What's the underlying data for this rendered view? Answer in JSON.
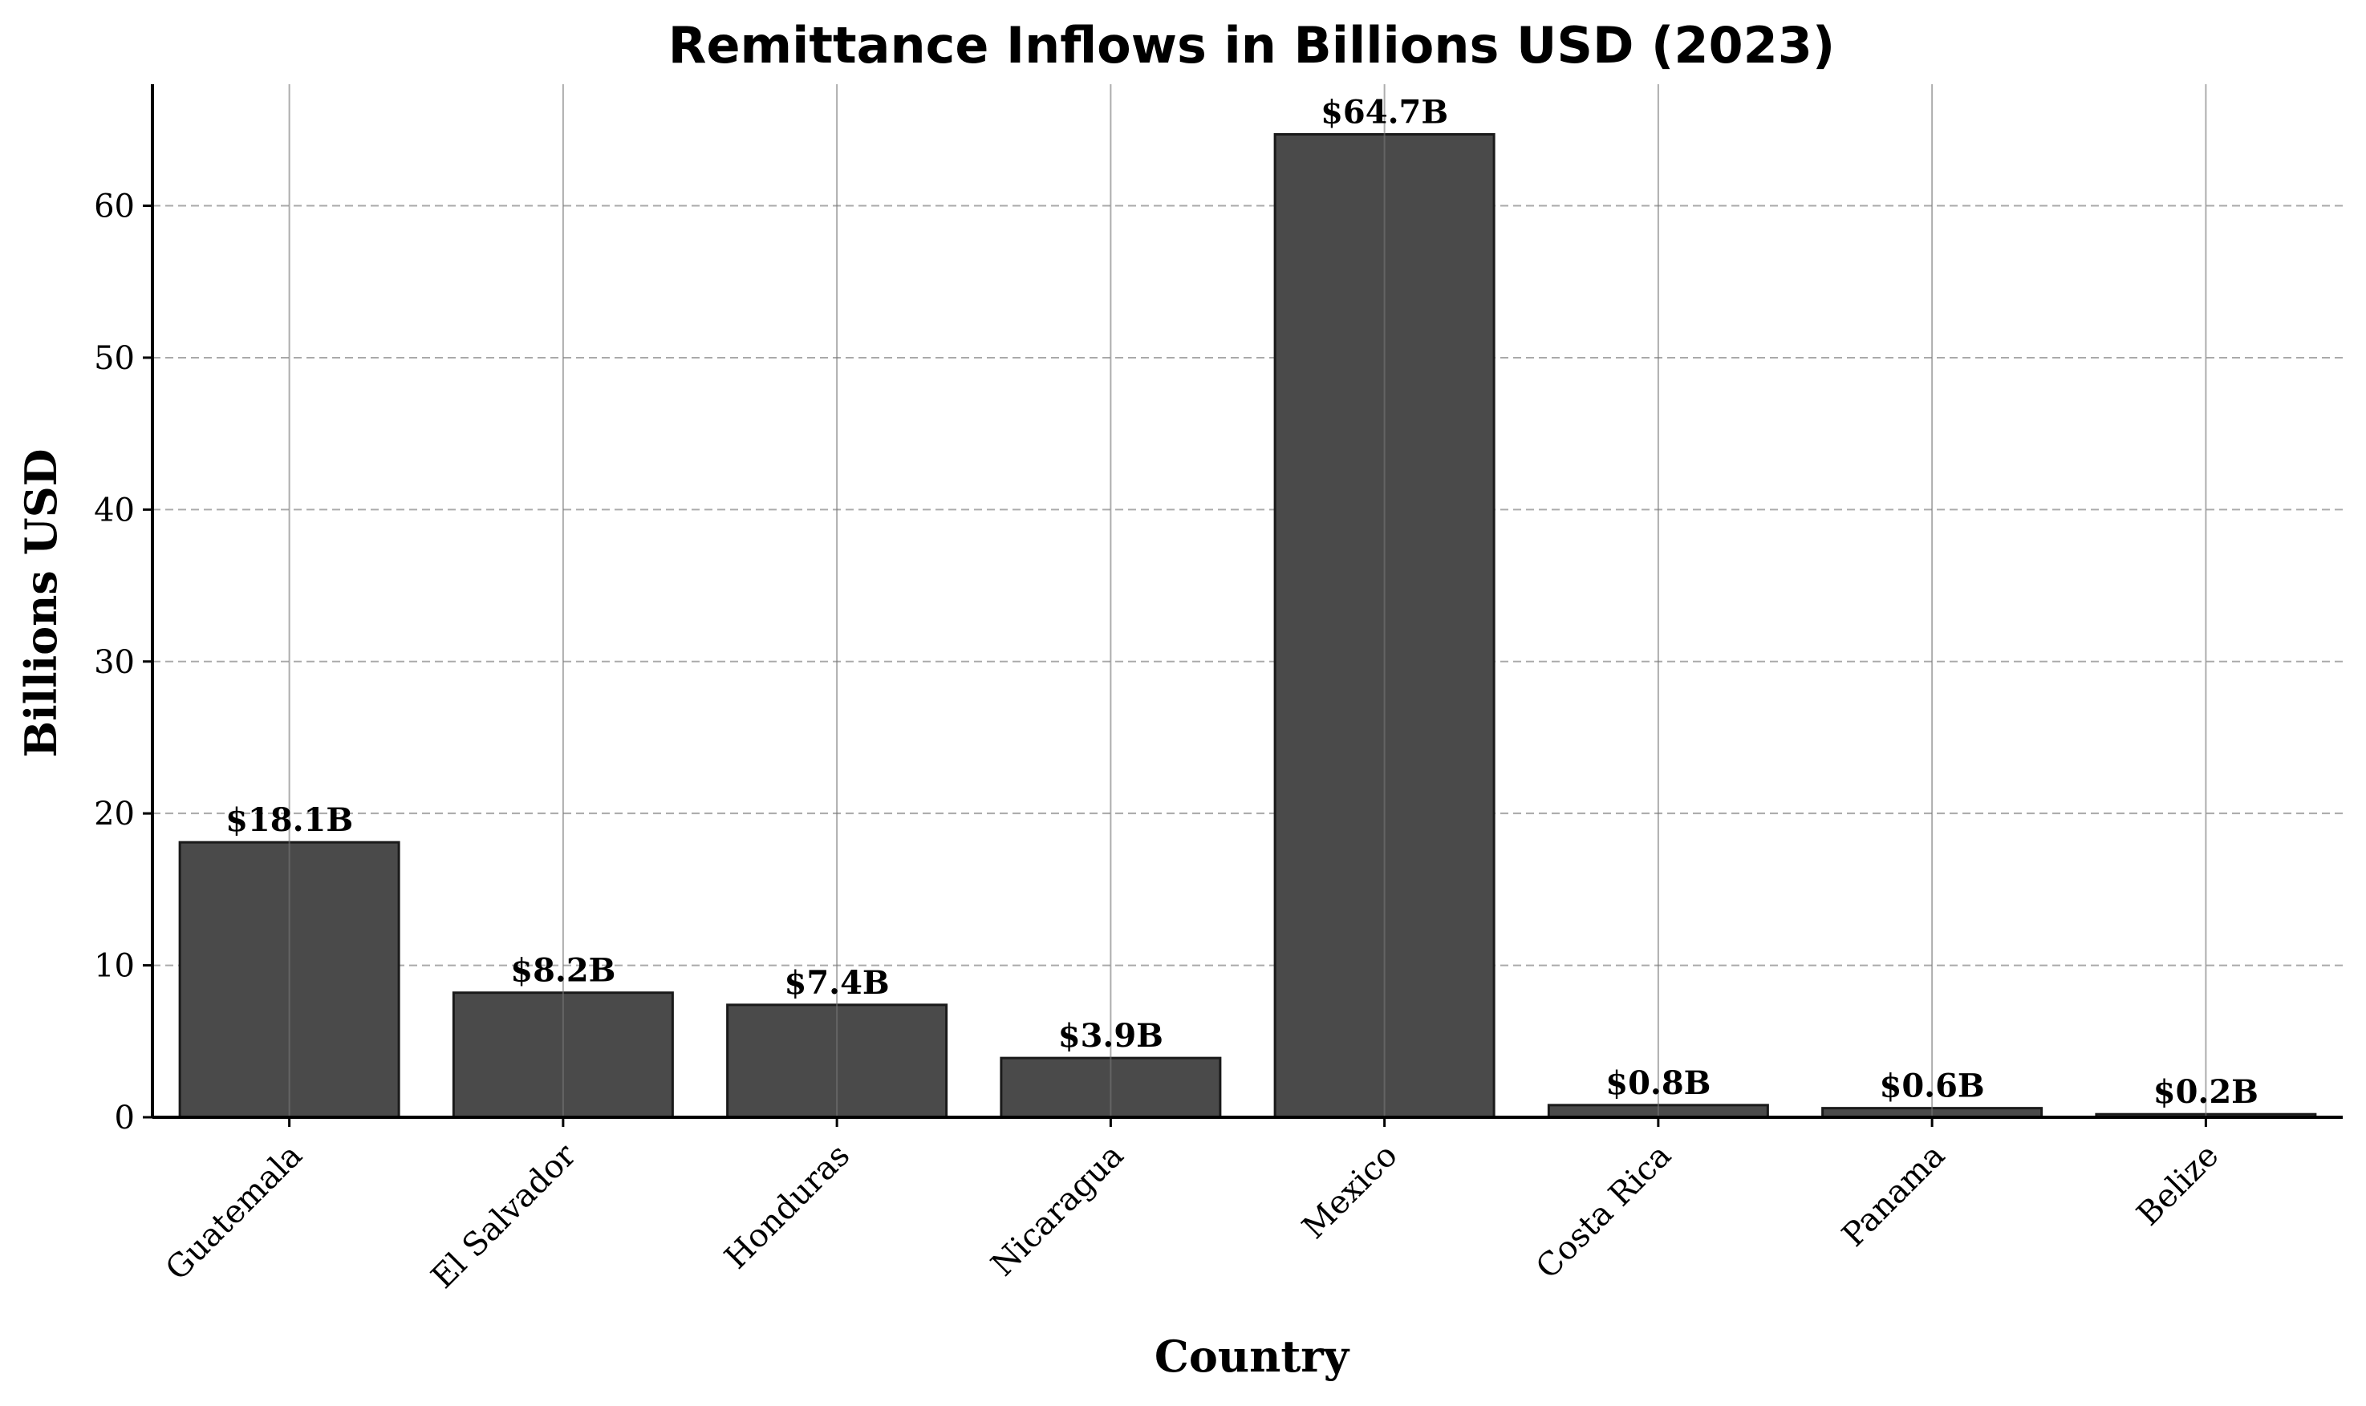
{
  "chart_data": {
    "type": "bar",
    "title": "Remittance Inflows in Billions USD (2023)",
    "xlabel": "Country",
    "ylabel": "Billions USD",
    "categories": [
      "Guatemala",
      "El Salvador",
      "Honduras",
      "Nicaragua",
      "Mexico",
      "Costa Rica",
      "Panama",
      "Belize"
    ],
    "values": [
      18.1,
      8.2,
      7.4,
      3.9,
      64.7,
      0.8,
      0.6,
      0.2
    ],
    "value_labels": [
      "$18.1B",
      "$8.2B",
      "$7.4B",
      "$3.9B",
      "$64.7B",
      "$0.8B",
      "$0.6B",
      "$0.2B"
    ],
    "ylim": [
      0,
      68
    ],
    "yticks": [
      0,
      10,
      20,
      30,
      40,
      50,
      60
    ],
    "grid": true,
    "bar_color": "#4a4a4a",
    "edge_color": "#1a1a1a"
  }
}
